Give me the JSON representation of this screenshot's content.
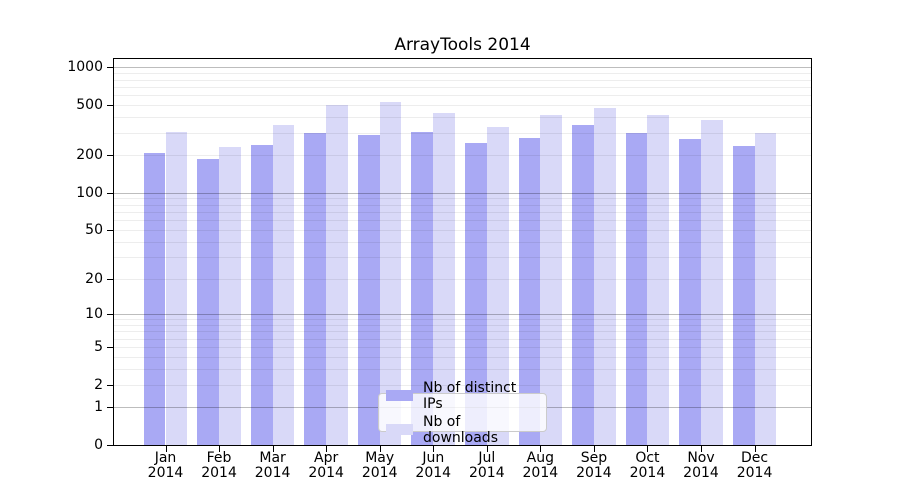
{
  "chart_data": {
    "type": "bar",
    "title": "ArrayTools 2014",
    "categories": [
      "Jan 2014",
      "Feb 2014",
      "Mar 2014",
      "Apr 2014",
      "May 2014",
      "Jun 2014",
      "Jul 2014",
      "Aug 2014",
      "Sep 2014",
      "Oct 2014",
      "Nov 2014",
      "Dec 2014"
    ],
    "series": [
      {
        "name": "Nb of distinct IPs",
        "color": "#a9a9f4",
        "values": [
          210,
          186,
          243,
          298,
          290,
          306,
          248,
          275,
          348,
          301,
          271,
          236
        ]
      },
      {
        "name": "Nb of downloads",
        "color": "#d9d9f8",
        "values": [
          306,
          232,
          350,
          506,
          528,
          430,
          336,
          422,
          480,
          415,
          380,
          298
        ]
      }
    ],
    "xlabel": "",
    "ylabel": "",
    "yscale": "log10(1+v)",
    "ylim": [
      0,
      1167
    ],
    "yticks": [
      0,
      1,
      2,
      5,
      10,
      20,
      50,
      100,
      200,
      500,
      1000
    ],
    "grid": "horizontal, minor lines 2-9 per decade, darker lines at powers of 10",
    "legend_position": "inside bottom-center"
  }
}
